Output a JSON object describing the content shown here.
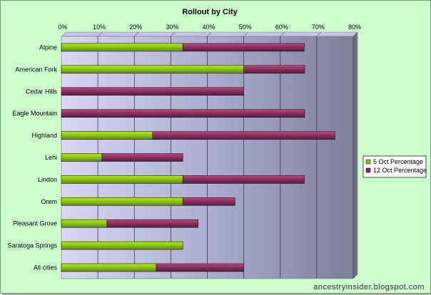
{
  "watermark": "ancestryinsider.blogspot.com",
  "chart_data": {
    "type": "bar",
    "orientation": "horizontal",
    "stacked": true,
    "title": "Rollout by City",
    "xlabel": "",
    "ylabel": "",
    "xlim": [
      0,
      0.8
    ],
    "x_ticks": [
      0,
      0.1,
      0.2,
      0.3,
      0.4,
      0.5,
      0.6,
      0.7,
      0.8
    ],
    "x_tick_labels": [
      "0%",
      "10%",
      "20%",
      "30%",
      "40%",
      "50%",
      "60%",
      "70%",
      "80%"
    ],
    "x_axis_position": "top",
    "grid": true,
    "legend_position": "right",
    "categories": [
      "Alpine",
      "American Fork",
      "Cedar Hills",
      "Eagle Mountain",
      "Highland",
      "Lehi",
      "Lindon",
      "Orem",
      "Pleasant Grove",
      "Saratoga Springs",
      "All cities"
    ],
    "series": [
      {
        "name": "5 Oct Percentage",
        "color": "#8cc20f",
        "values": [
          0.333,
          0.5,
          0,
          0,
          0.25,
          0.111,
          0.333,
          0.333,
          0.125,
          0.333,
          0.26
        ]
      },
      {
        "name": "12 Oct Percentage",
        "color": "#8b2c5e",
        "values": [
          0.333,
          0.167,
          0.5,
          0.667,
          0.5,
          0.222,
          0.333,
          0.143,
          0.25,
          0,
          0.24
        ]
      }
    ]
  }
}
